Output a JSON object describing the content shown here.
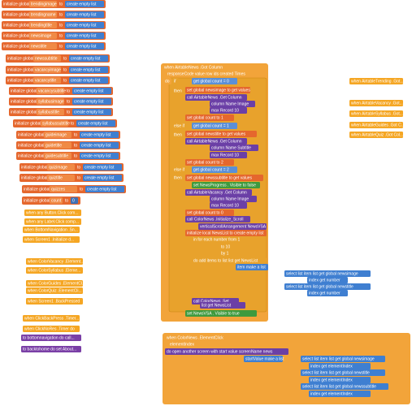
{
  "globals_label": "initialize global",
  "to": "to",
  "empty_list": "create empty list",
  "globals": [
    "trendingimage",
    "trendingname",
    "trendingtitle",
    "newsimage",
    "newstitle",
    "newssubtitle",
    "vacancyimage",
    "vacancytitle",
    "vacancysubtitle",
    "syllabusimage",
    "syllabustitle",
    "syllabussubtitle",
    "guideimage",
    "guidetitle",
    "guidesubtitle",
    "quizimage",
    "quiztitle",
    "quizzes"
  ],
  "count_global": {
    "name": "count",
    "value": 0
  },
  "left_events": [
    "when any Button.Click  com...",
    "when any Label.Click  comp...",
    "when BottomNavigation .Sn...",
    "when Screen1 .Initialize d...",
    "when ColorVacancy .Element...",
    "when ColorSyllabus .Eleme...",
    "when ColorGuides .ElementCl...",
    "when ColorQuiz .ElementCli...",
    "when Screen1 .BackPressed",
    "when ClickBackPress .Timer...",
    "when ClickNoRes .Timer do"
  ],
  "procedures": [
    "to bottomnavigation do call...",
    "to backtohome do set About..."
  ],
  "right_events": [
    "when AirtableTrending .Got...",
    "when AirtableVacancy .Got...",
    "when AirtableSyllabus .Got...",
    "when AirtableGuides .Got C...",
    "when AirtableQuiz .Got Col..."
  ],
  "main_block": [
    "when AirtableNews .Got Column",
    "responseCode  value  row ids  created Times",
    "do",
    "if",
    "get global count  =  0",
    "then",
    "set global newsimage to  get values",
    "call AirtableNews .Get Column",
    "column Name  Image",
    "max Record  10",
    "set global count to  1",
    "else if",
    "get global count  =  1",
    "then",
    "set global newstitle to  get values",
    "call AirtableNews .Get Column",
    "column Name  Subtitle",
    "max Record  10",
    "set global count to  2",
    "else if",
    "get global count  =  2",
    "then",
    "set global newssubtitle to  get values",
    "set NewsProgress . Visible to  false",
    "call AirtableVacancy .Get Column",
    "column Name  Image",
    "max Record  10",
    "set global count to  0",
    "call ColorNews .Initialize_Scroll",
    "verticalScrollArrangement  NewsVSA",
    "initialize local NewsList to  create empty list",
    "in  for each number from  1",
    "to  10",
    "by  1",
    "do  add items to list  list  get NewsList",
    "item  make a list",
    "select list item  list  get global newsimage",
    "index  get number",
    "select list item  list  get global newstitle",
    "index  get number",
    "call ColorNews .Set",
    "list  get NewsList",
    "set NewsVSA . Visible to  true"
  ],
  "click_block": [
    "when ColorNews .ElementClick",
    "elementIndex",
    "do  open another screen with start value  screenName  news",
    "startValue  make a list",
    "select list item  list  get global newsimage",
    "index  get elementIndex",
    "select list item  list  get global newstitle",
    "index  get elementIndex",
    "select list item  list  get global newssubtitle",
    "index  get elementIndex"
  ]
}
